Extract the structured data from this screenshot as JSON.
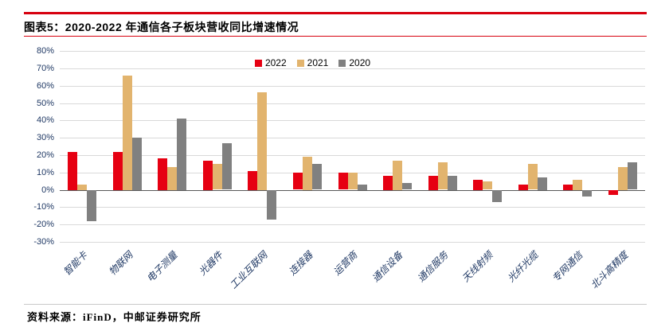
{
  "colors": {
    "accent_red": "#d7000f",
    "axis_label": "#1f3864",
    "gridline": "#d9d9d9",
    "zero_line": "#595959"
  },
  "header": {
    "title": "图表5：2020-2022 年通信各子板块营收同比增速情况"
  },
  "footer": {
    "source": "资料来源：iFinD，中邮证券研究所"
  },
  "chart_data": {
    "type": "bar",
    "title": "2020-2022 年通信各子板块营收同比增速情况",
    "xlabel": "",
    "ylabel": "",
    "categories": [
      "智能卡",
      "物联网",
      "电子测量",
      "光器件",
      "工业互联网",
      "连接器",
      "运营商",
      "通信设备",
      "通信服务",
      "天线射频",
      "光纤光缆",
      "专网通信",
      "北斗高精度"
    ],
    "series": [
      {
        "name": "2022",
        "color": "#e60012",
        "values": [
          22,
          22,
          18,
          17,
          11,
          10,
          10,
          8,
          8,
          6,
          3,
          3,
          -3
        ]
      },
      {
        "name": "2021",
        "color": "#e2b46e",
        "values": [
          3,
          66,
          13,
          15,
          56,
          19,
          10,
          17,
          16,
          5,
          15,
          6,
          13
        ]
      },
      {
        "name": "2020",
        "color": "#808080",
        "values": [
          -18,
          30,
          41,
          27,
          -17,
          15,
          3,
          4,
          8,
          -7,
          7,
          -4,
          16
        ]
      }
    ],
    "ylim": [
      -30,
      80
    ],
    "ytick_step": 10,
    "ytick_suffix": "%",
    "grid": true,
    "legend_position": "top-center"
  }
}
